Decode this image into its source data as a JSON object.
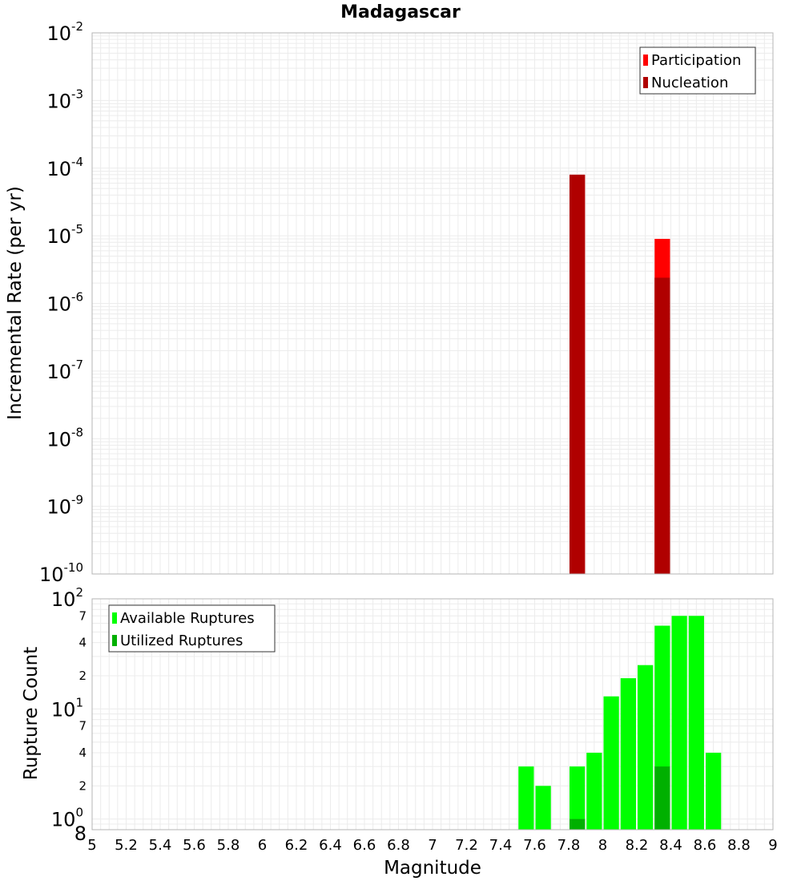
{
  "chart_data": [
    {
      "type": "bar",
      "title": "Madagascar",
      "ylabel": "Incremental Rate (per yr)",
      "yscale": "log",
      "ylim": [
        1e-10,
        0.01
      ],
      "y_tick_labels": [
        {
          "base": "10",
          "exp": "-10"
        },
        {
          "base": "10",
          "exp": "-9"
        },
        {
          "base": "10",
          "exp": "-8"
        },
        {
          "base": "10",
          "exp": "-7"
        },
        {
          "base": "10",
          "exp": "-6"
        },
        {
          "base": "10",
          "exp": "-5"
        },
        {
          "base": "10",
          "exp": "-4"
        },
        {
          "base": "10",
          "exp": "-3"
        },
        {
          "base": "10",
          "exp": "-2"
        }
      ],
      "bin_width": 0.1,
      "legend": {
        "position": "top-right"
      },
      "grid": true,
      "series": [
        {
          "name": "Participation",
          "color": "#ff0000",
          "x": [
            7.85,
            8.35
          ],
          "values": [
            8e-05,
            9e-06
          ]
        },
        {
          "name": "Nucleation",
          "color": "#b00000",
          "x": [
            7.85,
            8.35
          ],
          "values": [
            8e-05,
            2.4e-06
          ]
        }
      ]
    },
    {
      "type": "bar",
      "ylabel": "Rupture Count",
      "xlabel": "Magnitude",
      "yscale": "log",
      "ylim": [
        0.8,
        100
      ],
      "xlim": [
        5,
        9
      ],
      "x_ticks": [
        "5",
        "5.2",
        "5.4",
        "5.6",
        "5.8",
        "6",
        "6.2",
        "6.4",
        "6.6",
        "6.8",
        "7",
        "7.2",
        "7.4",
        "7.6",
        "7.8",
        "8",
        "8.2",
        "8.4",
        "8.6",
        "8.8",
        "9"
      ],
      "y_tick_labels": [
        {
          "base": "10",
          "exp": "0"
        },
        {
          "base": "10",
          "exp": "1"
        },
        {
          "base": "10",
          "exp": "2"
        }
      ],
      "y_minor_labels": [
        {
          "label": "8",
          "value": 0.8
        },
        {
          "label": "2",
          "value": 2
        },
        {
          "label": "4",
          "value": 4
        },
        {
          "label": "7",
          "value": 7
        },
        {
          "label": "2",
          "value": 20
        },
        {
          "label": "4",
          "value": 40
        },
        {
          "label": "7",
          "value": 70
        }
      ],
      "bin_width": 0.1,
      "legend": {
        "position": "top-left"
      },
      "grid": true,
      "series": [
        {
          "name": "Available Ruptures",
          "color": "#00ff00",
          "x": [
            7.55,
            7.65,
            7.85,
            7.95,
            8.05,
            8.15,
            8.25,
            8.35,
            8.45,
            8.55,
            8.65
          ],
          "values": [
            3,
            2,
            3,
            4,
            13,
            19,
            25,
            57,
            70,
            70,
            4
          ]
        },
        {
          "name": "Utilized Ruptures",
          "color": "#00b000",
          "x": [
            7.85,
            8.35
          ],
          "values": [
            1,
            3
          ]
        }
      ]
    }
  ]
}
